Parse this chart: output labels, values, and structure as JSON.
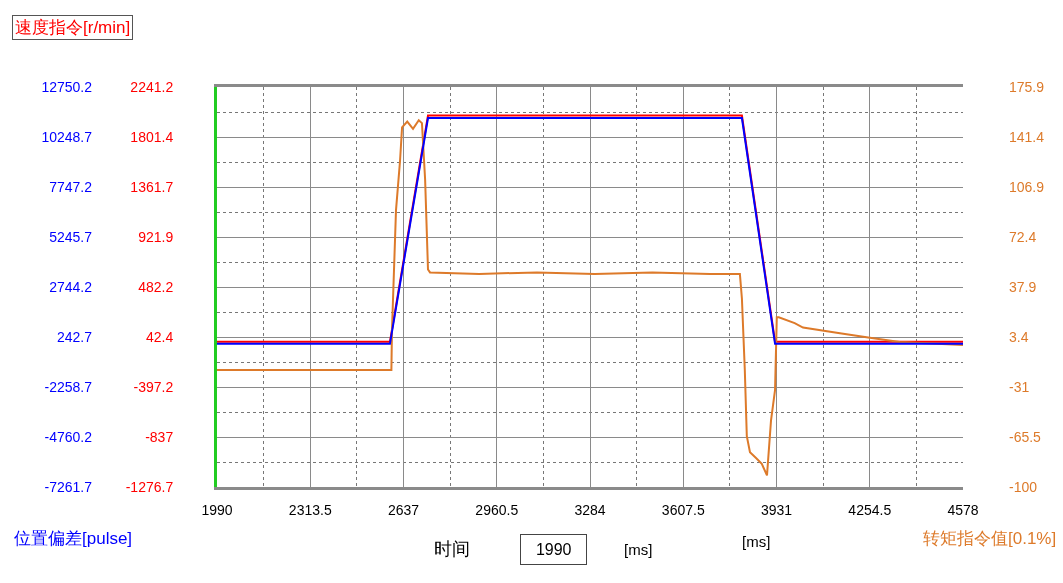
{
  "chart_data": {
    "type": "line",
    "ylabel": "速度指令[r/min]",
    "y2label": "转矩指令值[0.1%]",
    "y3label": "位置偏差[pulse]",
    "xlabel": "[ms]",
    "annotations": [
      "时间",
      "1990",
      "[ms]"
    ],
    "xlim": [
      1990,
      4578
    ],
    "xticks": [
      1990,
      2313.5,
      2637,
      2960.5,
      3284,
      3607.5,
      3931,
      4254.5,
      4578
    ],
    "ylim": [
      -1276.7,
      2241.2
    ],
    "yticks": [
      2241.2,
      1801.4,
      1361.7,
      921.9,
      482.2,
      42.4,
      -397.2,
      -837,
      -1276.7
    ],
    "y2lim": [
      -100,
      175.9
    ],
    "y2ticks": [
      175.9,
      141.4,
      106.9,
      72.4,
      37.9,
      3.4,
      -31,
      -65.5,
      -100
    ],
    "y3lim": [
      -7261.7,
      12750.2
    ],
    "y3ticks": [
      12750.2,
      10248.7,
      7747.2,
      5245.7,
      2744.2,
      242.7,
      -2258.7,
      -4760.2,
      -7261.7
    ],
    "grid": true,
    "series": [
      {
        "axis": "y2",
        "color": "#dd7a2a",
        "x": [
          1990,
          2595,
          2597,
          2611,
          2625,
          2632,
          2650,
          2670,
          2690,
          2701,
          2712,
          2722,
          2729,
          2900,
          3100,
          3300,
          3500,
          3700,
          3804,
          3811,
          3821,
          3828,
          3839,
          3860,
          3880,
          3898,
          3912,
          3926,
          3932,
          3939,
          3994,
          4023,
          4151,
          4255,
          4359,
          4578
        ],
        "values": [
          -19.3,
          -19.3,
          8,
          91,
          125,
          148,
          152,
          147,
          153,
          151,
          112,
          50,
          48,
          47,
          48,
          47,
          48,
          47,
          47,
          30,
          -19,
          -65,
          -76,
          -80,
          -84,
          -92,
          -54,
          -33,
          17,
          17,
          13,
          10,
          6,
          3,
          0,
          -2
        ]
      },
      {
        "axis": "y3",
        "color": "#0000ff",
        "x": [
          1990,
          2590,
          2722,
          3811,
          3926,
          4578
        ],
        "values": [
          -100,
          -100,
          11200,
          11200,
          -100,
          -100
        ]
      },
      {
        "axis": "y",
        "color": "#ff0000",
        "x": [
          1990,
          2590,
          2722,
          3811,
          3926,
          4578
        ],
        "values": [
          0,
          0,
          1990,
          1990,
          0,
          0
        ]
      }
    ]
  }
}
